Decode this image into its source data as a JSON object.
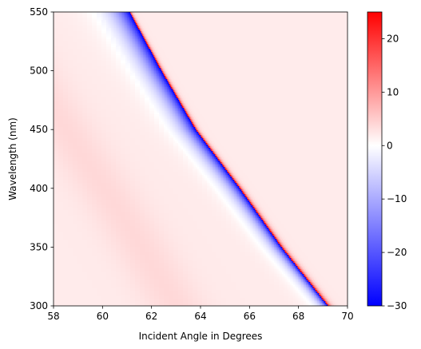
{
  "chart_data": {
    "type": "heatmap",
    "title": "",
    "xlabel": "Incident Angle in Degrees",
    "ylabel": "Wavelength (nm)",
    "xlim": [
      58,
      70
    ],
    "ylim": [
      300,
      550
    ],
    "x_ticks": [
      58,
      60,
      62,
      64,
      66,
      68,
      70
    ],
    "y_ticks": [
      300,
      350,
      400,
      450,
      500,
      550
    ],
    "colormap": "bwr",
    "color_range": [
      -30,
      25
    ],
    "colorbar_ticks": [
      -30,
      -20,
      -10,
      0,
      10,
      20
    ],
    "background_value": 2,
    "resonance_ridge": {
      "wavelength": [
        300,
        350,
        400,
        450,
        500,
        550
      ],
      "incident_angle": [
        69.2,
        67.3,
        65.6,
        63.8,
        62.4,
        61.1
      ],
      "negative_peak": -30,
      "positive_peak": 25
    },
    "secondary_band": {
      "wavelength": [
        300,
        370,
        450
      ],
      "incident_angle": [
        63.0,
        61.0,
        58.5
      ],
      "value": 4
    }
  },
  "colors": {
    "negative": "#0000ff",
    "zero": "#ffffff",
    "positive": "#ff0000",
    "axis": "#000000"
  }
}
